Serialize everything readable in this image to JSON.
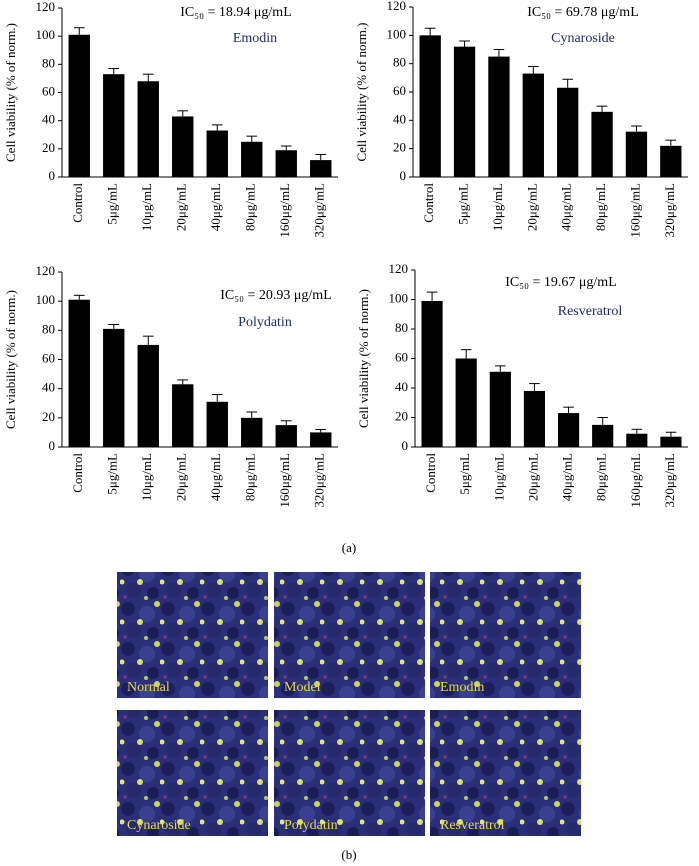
{
  "chart_data": [
    {
      "type": "bar",
      "title": "Emodin",
      "annotation": "IC₅₀ = 18.94 μg/mL",
      "y_label": "Cell viability (% of norm.)",
      "categories": [
        "Control",
        "5μg/mL",
        "10μg/mL",
        "20μg/mL",
        "40μg/mL",
        "80μg/mL",
        "160μg/mL",
        "320μg/mL"
      ],
      "values": [
        101,
        73,
        68,
        43,
        33,
        25,
        19,
        12
      ],
      "errors": [
        5,
        4,
        5,
        4,
        4,
        4,
        3,
        4
      ],
      "color": "#000000",
      "ylim": [
        0,
        120
      ],
      "yticks": [
        0,
        20,
        40,
        60,
        80,
        100,
        120
      ]
    },
    {
      "type": "bar",
      "title": "Cynaroside",
      "annotation": "IC₅₀ = 69.78 μg/mL",
      "y_label": "Cell viability (% of norm.)",
      "categories": [
        "Control",
        "5μg/mL",
        "10μg/mL",
        "20μg/mL",
        "40μg/mL",
        "80μg/mL",
        "160μg/mL",
        "320μg/mL"
      ],
      "values": [
        100,
        92,
        85,
        73,
        63,
        46,
        32,
        22
      ],
      "errors": [
        5,
        4,
        5,
        5,
        6,
        4,
        4,
        4
      ],
      "color": "#000000",
      "ylim": [
        0,
        120
      ],
      "yticks": [
        0,
        20,
        40,
        60,
        80,
        100,
        120
      ]
    },
    {
      "type": "bar",
      "title": "Polydatin",
      "annotation": "IC₅₀ = 20.93 μg/mL",
      "y_label": "Cell viability (% of norm.)",
      "categories": [
        "Control",
        "5μg/mL",
        "10μg/mL",
        "20μg/mL",
        "40μg/mL",
        "80μg/mL",
        "160μg/mL",
        "320μg/mL"
      ],
      "values": [
        101,
        81,
        70,
        43,
        31,
        20,
        15,
        10
      ],
      "errors": [
        3,
        3,
        6,
        3,
        5,
        4,
        3,
        2
      ],
      "color": "#000000",
      "ylim": [
        0,
        120
      ],
      "yticks": [
        0,
        20,
        40,
        60,
        80,
        100,
        120
      ]
    },
    {
      "type": "bar",
      "title": "Resveratrol",
      "annotation": "IC₅₀ = 19.67 μg/mL",
      "y_label": "Cell viability (% of norm.)",
      "categories": [
        "Control",
        "5μg/mL",
        "10μg/mL",
        "20μg/mL",
        "40μg/mL",
        "80μg/mL",
        "160μg/mL",
        "320μg/mL"
      ],
      "values": [
        99,
        60,
        51,
        38,
        23,
        15,
        9,
        7
      ],
      "errors": [
        6,
        6,
        4,
        5,
        4,
        5,
        3,
        3
      ],
      "color": "#000000",
      "ylim": [
        0,
        120
      ],
      "yticks": [
        0,
        20,
        40,
        60,
        80,
        100,
        120
      ]
    }
  ],
  "panel_labels": [
    "(a)",
    "(b)"
  ],
  "images": [
    "Normal",
    "Model",
    "Emodin",
    "Cynaroside",
    "Polydatin",
    "Resveratrol"
  ]
}
